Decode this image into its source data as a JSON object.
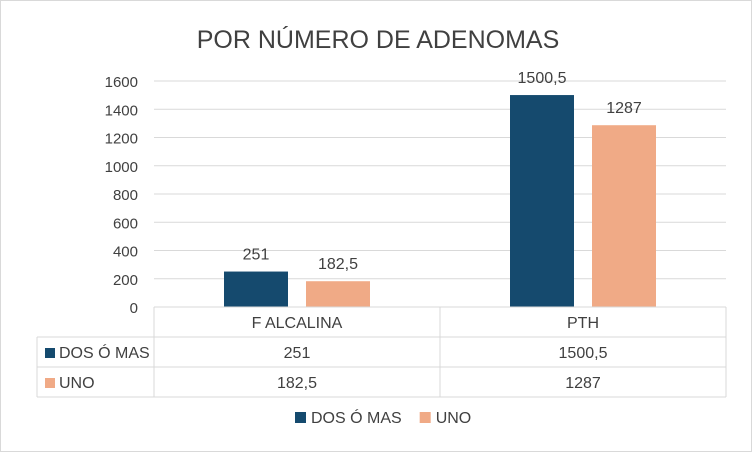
{
  "chart_data": {
    "type": "bar",
    "title": "POR NÚMERO DE ADENOMAS",
    "categories": [
      "F ALCALINA",
      "PTH"
    ],
    "series": [
      {
        "name": "DOS Ó MAS",
        "values": [
          251,
          1500.5
        ],
        "labels": [
          "251",
          "1500,5"
        ],
        "color": "#154a6e"
      },
      {
        "name": "UNO",
        "values": [
          182.5,
          1287
        ],
        "labels": [
          "182,5",
          "1287"
        ],
        "color": "#f0aa86"
      }
    ],
    "yticks": [
      "0",
      "200",
      "400",
      "600",
      "800",
      "1000",
      "1200",
      "1400",
      "1600"
    ],
    "ylim": [
      0,
      1600
    ],
    "grid": true,
    "legend_position": "bottom",
    "data_table": true
  }
}
